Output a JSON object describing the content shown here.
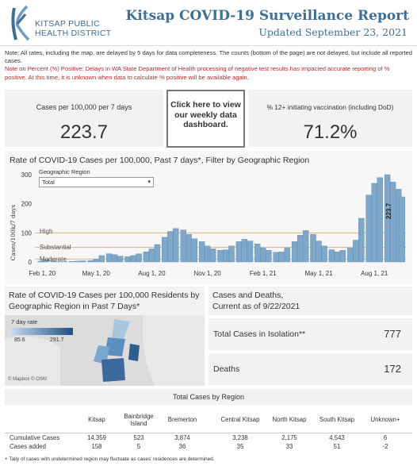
{
  "header": {
    "logo_line1": "KITSAP PUBLIC",
    "logo_line2": "HEALTH DISTRICT",
    "title": "Kitsap COVID-19 Surveillance Report",
    "subtitle": "Updated September 23, 2021"
  },
  "notes": {
    "line1": "Note: All rates, including the map, are delayed by 5 days for data completeness. The counts (bottom of the page) are not delayed, but include all reported cases.",
    "line2": "Note on Percent (%) Positive: Delays in WA State Department of Health processing of negative test results has impacted accurate reporting of % positive. At this time, it is unknown when data to calculate % positive will be available again."
  },
  "kpis": {
    "cases_label": "Cases per 100,000 per 7 days",
    "cases_value": "223.7",
    "dashboard_button": "Click here to view our weekly data dashboard.",
    "vacc_label": "% 12+ initiating vaccination (including DoD)",
    "vacc_value": "71.2%"
  },
  "rate_chart": {
    "title": "Rate of COVID-19 Cases per 100,000, Past 7 days*, Filter by Geographic Region",
    "filter_label": "Geographic Region",
    "filter_value": "Total",
    "ylabel": "Cases/100k/7 days",
    "band_high": "High",
    "band_substantial": "Substantial",
    "band_moderate": "Moderate",
    "last_value_label": "223.7"
  },
  "chart_data": {
    "type": "area",
    "title": "Rate of COVID-19 Cases per 100,000, Past 7 days*, Filter by Geographic Region",
    "xlabel": "",
    "ylabel": "Cases/100k/7 days",
    "ylim": [
      0,
      300
    ],
    "yticks": [
      "0",
      "100",
      "200",
      "300"
    ],
    "xticks": [
      "Feb 1, 20",
      "May 1, 20",
      "Aug 1, 20",
      "Nov 1, 20",
      "Feb 1, 21",
      "May 1, 21",
      "Aug 1, 21"
    ],
    "thresholds": [
      {
        "name": "High",
        "value": 100
      },
      {
        "name": "Substantial",
        "value": 50
      },
      {
        "name": "Moderate",
        "value": 10
      }
    ],
    "x": [
      0,
      0.3,
      0.6,
      1,
      1.3,
      1.6,
      2,
      2.3,
      2.6,
      3,
      3.3,
      3.6,
      4,
      4.3,
      4.6,
      5,
      5.3,
      5.6,
      6,
      6.3,
      6.6,
      7,
      7.3,
      7.6,
      8,
      8.3,
      8.6,
      9,
      9.3,
      9.6,
      10,
      10.3,
      10.6,
      11,
      11.3,
      11.6,
      12,
      12.3,
      12.6,
      13,
      13.3,
      13.6,
      14,
      14.3,
      14.6,
      15,
      15.3,
      15.6,
      16,
      16.3,
      16.6,
      17,
      17.3,
      17.6,
      18,
      18.3,
      18.6,
      19,
      19.3,
      19.6,
      19.8
    ],
    "values": [
      0,
      2,
      8,
      4,
      1,
      1,
      2,
      3,
      4,
      5,
      10,
      22,
      28,
      25,
      20,
      18,
      22,
      28,
      35,
      45,
      60,
      85,
      105,
      115,
      110,
      95,
      80,
      70,
      55,
      45,
      40,
      42,
      55,
      70,
      78,
      72,
      62,
      48,
      40,
      33,
      35,
      48,
      70,
      92,
      108,
      95,
      72,
      55,
      42,
      35,
      40,
      48,
      75,
      150,
      230,
      270,
      290,
      300,
      275,
      250,
      223.7
    ]
  },
  "map_panel": {
    "title": "Rate of COVID-19 Cases per 100,000 Residents by Geographic Region in Past 7 Days*",
    "legend_label": "7 day rate",
    "legend_min": "85.6",
    "legend_max": "291.7",
    "attribution": "© Mapbox © OSM"
  },
  "cases_deaths": {
    "title_line1": "Cases and Deaths,",
    "title_line2": "Current as of 9/22/2021",
    "isolation_label": "Total Cases in Isolation**",
    "isolation_value": "777",
    "deaths_label": "Deaths",
    "deaths_value": "172"
  },
  "region_table": {
    "title": "Total Cases by Region",
    "columns": [
      "Kitsap",
      "Bainbridge Island",
      "Bremerton",
      "Central Kitsap",
      "North Kitsap",
      "South Kitsap",
      "Unknown+"
    ],
    "rows": [
      {
        "label": "Cumulative Cases",
        "values": [
          "14,359",
          "523",
          "3,874",
          "3,238",
          "2,175",
          "4,543",
          "6"
        ]
      },
      {
        "label": "Cases added",
        "values": [
          "158",
          "5",
          "36",
          "35",
          "33",
          "51",
          "-2"
        ]
      }
    ],
    "footnote": "+ Tally of cases with undetermined region may fluctuate as cases' residences are determined."
  },
  "colors": {
    "brand_blue": "#3f6f98",
    "note_red": "#c0282b",
    "bar_blue": "#7fa7c9",
    "band_line": "#e0b080"
  }
}
